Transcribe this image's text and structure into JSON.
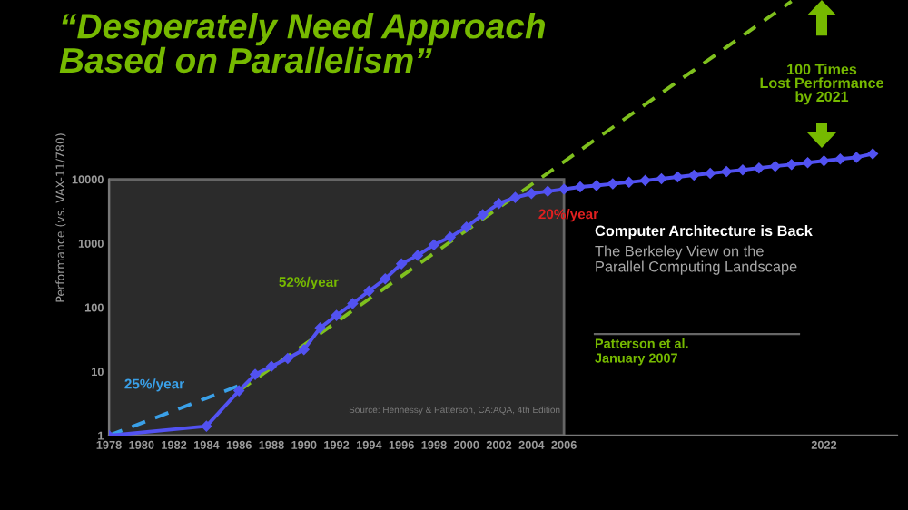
{
  "chart_data": {
    "type": "line",
    "title": "“Desperately Need Approach\nBased on Parallelism”",
    "ylabel": "Performance (vs. VAX-11/780)",
    "x": [
      1978,
      1984,
      1986,
      1987,
      1988,
      1989,
      1990,
      1991,
      1992,
      1993,
      1994,
      1995,
      1996,
      1997,
      1998,
      1999,
      2000,
      2001,
      2002,
      2003,
      2004,
      2005,
      2006,
      2007,
      2008,
      2009,
      2010,
      2011,
      2012,
      2013,
      2014,
      2015,
      2016,
      2017,
      2018,
      2019,
      2020,
      2021,
      2022,
      2023,
      2024,
      2025
    ],
    "series": [
      {
        "color": "#5252f2",
        "marker": "diamond",
        "line_style": "solid",
        "values": [
          1,
          1.4,
          5,
          9,
          12,
          16,
          22,
          48,
          75,
          115,
          180,
          280,
          480,
          650,
          950,
          1250,
          1800,
          2800,
          4200,
          5200,
          6000,
          6500,
          7000,
          7600,
          8000,
          8500,
          9000,
          9600,
          10200,
          10900,
          11600,
          12400,
          13200,
          14000,
          15000,
          16000,
          17000,
          18200,
          19400,
          20700,
          22000,
          25000
        ]
      },
      {
        "color": "#3aa0e8",
        "marker": "none",
        "line_style": "dashed",
        "x": [
          1978,
          1986
        ],
        "values": [
          1,
          6
        ]
      },
      {
        "color": "#7fc01e",
        "marker": "none",
        "line_style": "dashed",
        "x": [
          1986,
          2020
        ],
        "values": [
          5,
          6000000
        ]
      }
    ],
    "log": "y",
    "xlim": [
      1978,
      2026.5
    ],
    "ylim": [
      1,
      6300000
    ],
    "xticks": [
      1978,
      1980,
      1982,
      1984,
      1986,
      1988,
      1990,
      1992,
      1994,
      1996,
      1998,
      2000,
      2002,
      2004,
      2006,
      2022
    ],
    "yticks": [
      1,
      10,
      100,
      1000,
      10000
    ],
    "grid": false,
    "legend": false,
    "annotations": [
      "25%/year",
      "52%/year",
      "20%/year",
      "100 Times\nLost Performance\nby 2021",
      "Source: Hennessy & Patterson, CA:AQA, 4th Edition",
      "Computer Architecture is Back",
      "The Berkeley View on the\nParallel Computing Landscape",
      "Patterson et al.\nJanuary 2007"
    ]
  }
}
